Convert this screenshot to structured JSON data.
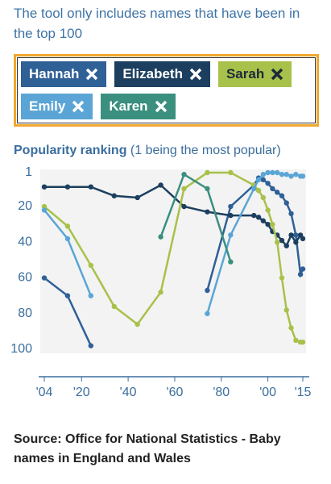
{
  "chart_data": {
    "type": "line",
    "note": "The tool only includes names that have been in the top 100",
    "title": "Popularity ranking",
    "subtitle": "(1 being the most popular)",
    "source": "Source: Office for National Statistics - Baby names in England and Wales",
    "x": [
      1904,
      1914,
      1924,
      1934,
      1944,
      1954,
      1964,
      1974,
      1984,
      1994,
      1996,
      1998,
      2000,
      2002,
      2004,
      2006,
      2008,
      2010,
      2012,
      2014,
      2015
    ],
    "xlim": [
      1904,
      2015
    ],
    "xticks": [
      {
        "value": 1904,
        "label": "'04"
      },
      {
        "value": 1920,
        "label": "'20"
      },
      {
        "value": 1940,
        "label": "'40"
      },
      {
        "value": 1960,
        "label": "'60"
      },
      {
        "value": 1980,
        "label": "'80"
      },
      {
        "value": 2000,
        "label": "'00"
      },
      {
        "value": 2015,
        "label": "'15"
      }
    ],
    "ylim": [
      1,
      100
    ],
    "y_inverted": true,
    "yticks": [
      1,
      20,
      40,
      60,
      80,
      100
    ],
    "series": [
      {
        "name": "Hannah",
        "color": "#2f6096",
        "values": [
          60,
          70,
          98,
          null,
          null,
          null,
          null,
          67,
          20,
          8,
          4,
          5,
          7,
          10,
          12,
          14,
          18,
          24,
          36,
          58,
          55
        ]
      },
      {
        "name": "Elizabeth",
        "color": "#1d3f5f",
        "values": [
          9,
          9,
          9,
          14,
          15,
          8,
          20,
          23,
          25,
          25,
          26,
          28,
          30,
          34,
          36,
          39,
          42,
          36,
          40,
          36,
          38
        ]
      },
      {
        "name": "Sarah",
        "color": "#a8c14a",
        "values": [
          20,
          31,
          53,
          76,
          86,
          68,
          10,
          1,
          1,
          8,
          11,
          15,
          22,
          30,
          40,
          60,
          78,
          88,
          95,
          96,
          96
        ]
      },
      {
        "name": "Emily",
        "color": "#5ba5d6",
        "values": [
          22,
          38,
          70,
          null,
          null,
          null,
          null,
          80,
          36,
          10,
          5,
          2,
          1,
          1,
          1,
          2,
          2,
          3,
          2,
          3,
          3
        ]
      },
      {
        "name": "Karen",
        "color": "#3b8f7f",
        "values": [
          null,
          null,
          null,
          null,
          null,
          37,
          2,
          10,
          51,
          null,
          null,
          null,
          null,
          null,
          null,
          null,
          null,
          null,
          null,
          null,
          null
        ]
      }
    ]
  }
}
